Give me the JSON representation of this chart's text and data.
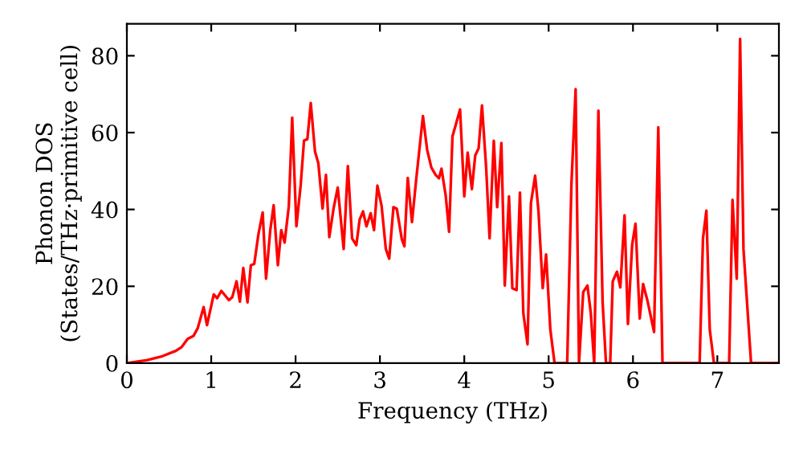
{
  "chart_data": {
    "type": "line",
    "xlabel": "Frequency (THz)",
    "ylabel": "Phonon DOS\n(States/THz·primitive cell)",
    "series": [
      {
        "color": "#ff0000",
        "x": [
          0,
          0.24,
          0.42,
          0.58,
          0.65,
          0.72,
          0.79,
          0.84,
          0.91,
          0.95,
          1.03,
          1.07,
          1.12,
          1.21,
          1.25,
          1.3,
          1.34,
          1.38,
          1.43,
          1.47,
          1.51,
          1.56,
          1.61,
          1.65,
          1.7,
          1.74,
          1.79,
          1.83,
          1.87,
          1.92,
          1.96,
          2.01,
          2.06,
          2.1,
          2.14,
          2.18,
          2.23,
          2.27,
          2.32,
          2.36,
          2.4,
          2.45,
          2.5,
          2.57,
          2.62,
          2.67,
          2.72,
          2.76,
          2.8,
          2.84,
          2.89,
          2.93,
          2.97,
          3.02,
          3.07,
          3.11,
          3.16,
          3.2,
          3.26,
          3.29,
          3.33,
          3.38,
          3.43,
          3.51,
          3.56,
          3.61,
          3.66,
          3.7,
          3.73,
          3.78,
          3.82,
          3.86,
          3.95,
          4.0,
          4.04,
          4.09,
          4.13,
          4.17,
          4.21,
          4.26,
          4.3,
          4.35,
          4.39,
          4.44,
          4.48,
          4.53,
          4.57,
          4.62,
          4.66,
          4.7,
          4.75,
          4.79,
          4.84,
          4.88,
          4.93,
          4.97,
          5.02,
          5.07,
          5.22,
          5.27,
          5.32,
          5.36,
          5.41,
          5.46,
          5.5,
          5.54,
          5.59,
          5.64,
          5.68,
          5.73,
          5.76,
          5.81,
          5.85,
          5.9,
          5.94,
          5.99,
          6.03,
          6.08,
          6.12,
          6.17,
          6.21,
          6.25,
          6.3,
          6.35,
          6.79,
          6.83,
          6.87,
          6.91,
          6.96,
          7.14,
          7.18,
          7.23,
          7.27,
          7.31,
          7.4,
          7.73
        ],
        "values": [
          0,
          0.8,
          1.8,
          3.2,
          4.2,
          6.3,
          7.1,
          9.1,
          14.6,
          9.9,
          17.9,
          16.9,
          18.8,
          16.4,
          17.2,
          21.3,
          16,
          24.8,
          15.8,
          25.5,
          25.8,
          33.6,
          39.2,
          22,
          34.6,
          41.1,
          25.5,
          34.6,
          31.4,
          40.9,
          63.9,
          35.6,
          46.2,
          57.9,
          58.3,
          67.7,
          55.1,
          52,
          40.2,
          49,
          32.8,
          40.2,
          45.7,
          29.7,
          51.3,
          32.5,
          30.7,
          37.4,
          39.5,
          35.6,
          39,
          34.6,
          46.2,
          40.9,
          29.7,
          27.2,
          40.6,
          40.2,
          32.2,
          30.4,
          48.2,
          36.7,
          47.8,
          64.3,
          55.5,
          50.9,
          49,
          48.1,
          50.6,
          43.6,
          34.2,
          59,
          66,
          43.4,
          54.8,
          45.3,
          54.1,
          55.9,
          67.1,
          50.6,
          32.5,
          57.9,
          40.6,
          57.3,
          20.2,
          43.4,
          19.5,
          19,
          44.4,
          13,
          4.9,
          41.6,
          48.8,
          39.5,
          19.5,
          28.3,
          8.8,
          0,
          0,
          46.4,
          71.3,
          0,
          18.5,
          20.2,
          13,
          0,
          65.7,
          15.8,
          0,
          0,
          21.3,
          23.8,
          19.7,
          38.5,
          10.2,
          30.8,
          36.3,
          11.6,
          20.6,
          16.4,
          12.3,
          8.1,
          61.4,
          0,
          0,
          32.5,
          39.7,
          8.8,
          0,
          0,
          42.5,
          22,
          84.4,
          29.7,
          0,
          0
        ]
      }
    ],
    "xlim": [
      0,
      7.73
    ],
    "ylim": [
      0,
      88.3
    ],
    "xticks": [
      0,
      1,
      2,
      3,
      4,
      5,
      6,
      7
    ],
    "yticks": [
      0,
      20,
      40,
      60,
      80
    ]
  }
}
